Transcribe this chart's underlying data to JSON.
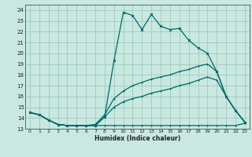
{
  "xlabel": "Humidex (Indice chaleur)",
  "xlim": [
    -0.5,
    23.5
  ],
  "ylim": [
    13,
    24.5
  ],
  "yticks": [
    13,
    14,
    15,
    16,
    17,
    18,
    19,
    20,
    21,
    22,
    23,
    24
  ],
  "xticks": [
    0,
    1,
    2,
    3,
    4,
    5,
    6,
    7,
    8,
    9,
    10,
    11,
    12,
    13,
    14,
    15,
    16,
    17,
    18,
    19,
    20,
    21,
    22,
    23
  ],
  "bg_color": "#c8e8e0",
  "grid_color": "#a0c8c0",
  "line_color": "#006868",
  "line1_x": [
    0,
    1,
    2,
    3,
    4,
    5,
    6,
    7,
    8,
    9,
    10,
    11,
    12,
    13,
    14,
    15,
    16,
    17,
    18,
    19,
    20,
    21,
    22,
    23
  ],
  "line1_y": [
    14.5,
    14.3,
    13.8,
    13.4,
    13.3,
    13.3,
    13.3,
    13.3,
    14.1,
    19.3,
    23.8,
    23.5,
    22.2,
    23.6,
    22.5,
    22.2,
    22.3,
    21.2,
    20.5,
    20.0,
    18.3,
    16.0,
    14.7,
    13.6
  ],
  "line2_x": [
    0,
    1,
    2,
    3,
    4,
    5,
    6,
    7,
    8,
    9,
    10,
    11,
    12,
    13,
    14,
    15,
    16,
    17,
    18,
    19,
    20,
    21,
    22,
    23
  ],
  "line2_y": [
    14.5,
    14.3,
    13.8,
    13.4,
    13.3,
    13.3,
    13.3,
    13.4,
    14.3,
    15.8,
    16.5,
    17.0,
    17.3,
    17.6,
    17.8,
    18.0,
    18.3,
    18.5,
    18.8,
    19.0,
    18.3,
    16.0,
    14.7,
    13.6
  ],
  "line3_x": [
    0,
    1,
    2,
    3,
    4,
    5,
    6,
    7,
    8,
    9,
    10,
    11,
    12,
    13,
    14,
    15,
    16,
    17,
    18,
    19,
    20,
    21,
    22,
    23
  ],
  "line3_y": [
    14.5,
    14.3,
    13.8,
    13.4,
    13.3,
    13.3,
    13.3,
    13.3,
    14.1,
    15.0,
    15.5,
    15.8,
    16.0,
    16.3,
    16.5,
    16.7,
    17.0,
    17.2,
    17.5,
    17.8,
    17.5,
    16.0,
    14.7,
    13.6
  ],
  "line4_x": [
    0,
    1,
    2,
    3,
    4,
    5,
    6,
    7,
    8,
    9,
    10,
    11,
    12,
    13,
    14,
    15,
    16,
    17,
    18,
    19,
    20,
    21,
    22,
    23
  ],
  "line4_y": [
    14.5,
    14.3,
    13.8,
    13.4,
    13.3,
    13.3,
    13.3,
    13.3,
    13.3,
    13.3,
    13.3,
    13.3,
    13.3,
    13.3,
    13.3,
    13.3,
    13.3,
    13.3,
    13.3,
    13.3,
    13.3,
    13.3,
    13.3,
    13.5
  ]
}
